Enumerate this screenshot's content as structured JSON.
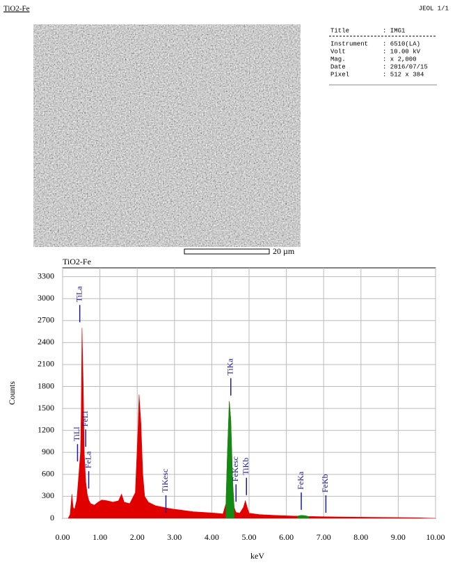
{
  "header": {
    "left": "TiO2-Fe",
    "right": "JEOL  1/1"
  },
  "scale_bar": "20 µm",
  "info": [
    [
      "Title",
      ": IMG1"
    ],
    [
      "Instrument",
      ": 6510(LA)"
    ],
    [
      "Volt",
      ": 10.00 kV"
    ],
    [
      "Mag.",
      ": x 2,000"
    ],
    [
      "Date",
      ": 2016/07/15"
    ],
    [
      "Pixel",
      ": 512 x 384"
    ]
  ],
  "chart_data": {
    "type": "area",
    "title": "TiO2-Fe",
    "x_label": "keV",
    "y_label": "Counts",
    "xlim": [
      0,
      10
    ],
    "ylim": [
      0,
      3420
    ],
    "xticks": [
      {
        "value": 0,
        "label": "0.00"
      },
      {
        "value": 1,
        "label": "1.00"
      },
      {
        "value": 2,
        "label": "2.00"
      },
      {
        "value": 3,
        "label": "3.00"
      },
      {
        "value": 4,
        "label": "4.00"
      },
      {
        "value": 5,
        "label": "5.00"
      },
      {
        "value": 6,
        "label": "6.00"
      },
      {
        "value": 7,
        "label": "7.00"
      },
      {
        "value": 8,
        "label": "8.00"
      },
      {
        "value": 9,
        "label": "9.00"
      },
      {
        "value": 10,
        "label": "10.00"
      }
    ],
    "yticks": [
      0,
      300,
      600,
      900,
      1200,
      1500,
      1800,
      2100,
      2400,
      2700,
      3000,
      3300
    ],
    "grid": true,
    "x": [
      0.15,
      0.2,
      0.25,
      0.28,
      0.32,
      0.38,
      0.42,
      0.45,
      0.48,
      0.5,
      0.52,
      0.55,
      0.58,
      0.62,
      0.66,
      0.7,
      0.75,
      0.85,
      0.95,
      1.05,
      1.2,
      1.35,
      1.5,
      1.58,
      1.65,
      1.8,
      1.95,
      2.02,
      2.05,
      2.1,
      2.15,
      2.2,
      2.3,
      2.5,
      2.7,
      2.9,
      3.2,
      3.5,
      3.8,
      4.1,
      4.3,
      4.38,
      4.42,
      4.47,
      4.51,
      4.56,
      4.6,
      4.65,
      4.75,
      4.85,
      4.9,
      4.95,
      5.0,
      5.3,
      5.7,
      6.2,
      6.3,
      6.4,
      6.5,
      6.6,
      6.7,
      7.2,
      8.0,
      9.0,
      9.5,
      10.0
    ],
    "series": [
      {
        "color": "#e00000",
        "values": [
          0,
          50,
          330,
          150,
          120,
          250,
          500,
          700,
          900,
          1500,
          2600,
          1900,
          900,
          500,
          330,
          250,
          200,
          180,
          220,
          250,
          240,
          220,
          240,
          330,
          220,
          200,
          350,
          1200,
          1690,
          1300,
          600,
          300,
          220,
          170,
          150,
          130,
          110,
          90,
          80,
          70,
          60,
          200,
          900,
          1600,
          1350,
          500,
          150,
          80,
          70,
          150,
          240,
          150,
          70,
          50,
          40,
          30,
          30,
          40,
          35,
          25,
          25,
          20,
          15,
          10,
          8,
          0
        ]
      },
      {
        "color": "#138a13",
        "values": [
          null,
          null,
          null,
          null,
          null,
          null,
          null,
          null,
          null,
          null,
          null,
          null,
          null,
          null,
          null,
          null,
          null,
          null,
          null,
          null,
          null,
          null,
          null,
          null,
          null,
          null,
          null,
          null,
          null,
          null,
          null,
          null,
          null,
          null,
          null,
          null,
          null,
          null,
          null,
          null,
          null,
          200,
          900,
          1600,
          1350,
          500,
          150,
          null,
          null,
          null,
          null,
          null,
          null,
          null,
          null,
          null,
          30,
          40,
          35,
          25,
          null,
          null,
          null,
          null,
          null,
          null
        ]
      }
    ],
    "peak_color": "#1a1a9a",
    "peaks": [
      {
        "label": "TiLl",
        "x": 0.4
      },
      {
        "label": "TiLa",
        "x": 0.46
      },
      {
        "label": "FeLl",
        "x": 0.62
      },
      {
        "label": "FeLa",
        "x": 0.7
      },
      {
        "label": "TiKesc",
        "x": 2.77
      },
      {
        "label": "TiKa",
        "x": 4.51
      },
      {
        "label": "FeKesc",
        "x": 4.65
      },
      {
        "label": "TiKb",
        "x": 4.93
      },
      {
        "label": "FeKa",
        "x": 6.4
      },
      {
        "label": "FeKb",
        "x": 7.06
      }
    ]
  }
}
